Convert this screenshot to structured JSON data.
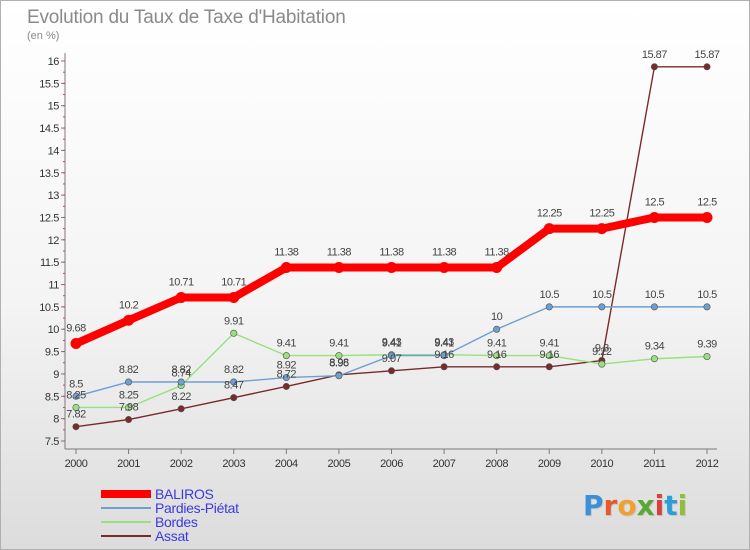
{
  "chart_data": {
    "type": "line",
    "title": "Evolution du Taux de Taxe d'Habitation",
    "subtitle": "(en %)",
    "x": [
      2000,
      2001,
      2002,
      2003,
      2004,
      2005,
      2006,
      2007,
      2008,
      2009,
      2010,
      2011,
      2012
    ],
    "ylim": [
      7.5,
      16
    ],
    "yticks": [
      7.5,
      8,
      8.5,
      9,
      9.5,
      10,
      10.5,
      11,
      11.5,
      12,
      12.5,
      13,
      13.5,
      14,
      14.5,
      15,
      15.5,
      16
    ],
    "grid": false,
    "legend_position": "bottom-left",
    "series": [
      {
        "name": "BALIROS",
        "color": "#ff0000",
        "values": [
          9.68,
          10.2,
          10.71,
          10.71,
          11.38,
          11.38,
          11.38,
          11.38,
          11.38,
          12.25,
          12.25,
          12.5,
          12.5
        ],
        "labels": [
          "9.68",
          "10.2",
          "10.71",
          "10.71",
          "11.38",
          "11.38",
          "11.38",
          "11.38",
          "11.38",
          "12.25",
          "12.25",
          "12.5",
          "12.5"
        ]
      },
      {
        "name": "Pardies-Piétat",
        "color": "#6d9fd0",
        "values": [
          8.5,
          8.82,
          8.82,
          8.82,
          8.92,
          8.96,
          9.41,
          9.41,
          10,
          10.5,
          10.5,
          10.5,
          10.5
        ],
        "labels": [
          "8.5",
          "8.82",
          "8.82",
          "8.82",
          "8.92",
          "8.96",
          "9.41",
          "9.41",
          "10",
          "10.5",
          "10.5",
          "10.5",
          "10.5"
        ]
      },
      {
        "name": "Bordes",
        "color": "#99e07e",
        "values": [
          8.25,
          8.25,
          8.74,
          9.91,
          9.41,
          9.41,
          9.43,
          9.43,
          9.41,
          9.41,
          9.22,
          9.34,
          9.39
        ],
        "labels": [
          "8.25",
          "8.25",
          "8.74",
          "9.91",
          "9.41",
          "9.41",
          "9.43",
          "9.43",
          "9.41",
          "9.41",
          "9.22",
          "9.34",
          "9.39"
        ]
      },
      {
        "name": "Assat",
        "color": "#7a2a2a",
        "values": [
          7.82,
          7.98,
          8.22,
          8.47,
          8.72,
          8.98,
          9.07,
          9.16,
          9.16,
          9.16,
          9.3,
          15.87,
          15.87
        ],
        "labels": [
          "7.82",
          "7.98",
          "8.22",
          "8.47",
          "8.72",
          "8.98",
          "9.07",
          "9.16",
          "9.16",
          "9.16",
          "9.3",
          "15.87",
          "15.87"
        ]
      }
    ]
  },
  "legend": {
    "items": [
      "BALIROS",
      "Pardies-Piétat",
      "Bordes",
      "Assat"
    ]
  },
  "logo": {
    "letters": [
      "P",
      "r",
      "o",
      "x",
      "i",
      "t",
      "i"
    ],
    "colors": [
      "#3c8fd8",
      "#e45a2a",
      "#f0a030",
      "#5aa832",
      "#d93f3f",
      "#2c9fd8",
      "#8fbf3a"
    ]
  }
}
